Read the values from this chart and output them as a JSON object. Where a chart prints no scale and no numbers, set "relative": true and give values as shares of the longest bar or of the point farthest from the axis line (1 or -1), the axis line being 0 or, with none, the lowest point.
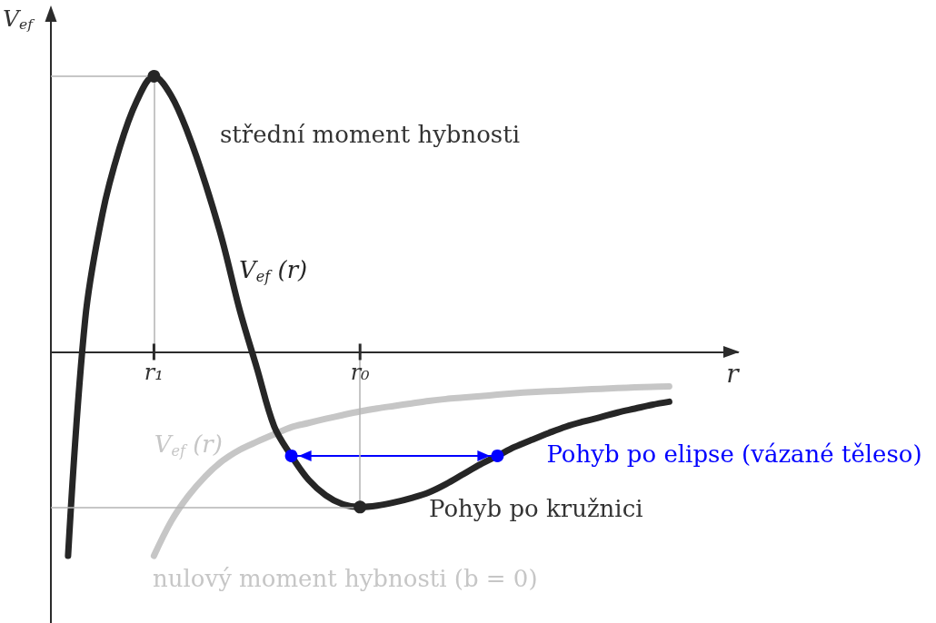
{
  "chart_data": {
    "type": "line",
    "relative": true,
    "xlabel": "r",
    "ylabel": "V$_{ef}$",
    "marker": "none",
    "categories": [
      null,
      null,
      null,
      null,
      null,
      null,
      "r₁",
      null,
      null,
      null,
      null,
      null,
      null,
      null,
      null,
      null,
      null,
      null,
      "r₀",
      null,
      null,
      null,
      null,
      null,
      null,
      null,
      null,
      null,
      null,
      null,
      null,
      null,
      null,
      null,
      null,
      null,
      null,
      null,
      null,
      null,
      null
    ],
    "series": [
      {
        "name": "V$_{ef}$ (r)",
        "color": "#262626",
        "values": [
          null,
          -0.74,
          0.12,
          0.5,
          0.74,
          0.91,
          1,
          0.93,
          0.79,
          0.61,
          0.4,
          0.15,
          -0.06,
          -0.27,
          -0.377,
          -0.464,
          -0.52,
          -0.553,
          -0.563,
          -0.558,
          -0.546,
          -0.53,
          -0.51,
          -0.48,
          -0.444,
          -0.408,
          -0.377,
          -0.345,
          -0.319,
          -0.294,
          -0.271,
          -0.253,
          -0.237,
          -0.22,
          -0.206,
          -0.192,
          -0.181,
          null,
          null,
          null,
          null
        ]
      },
      {
        "name": "V$_{ef}$ (r)",
        "color": "#c6c6c6",
        "values": [
          null,
          null,
          null,
          null,
          null,
          null,
          -0.74,
          -0.615,
          -0.523,
          -0.451,
          -0.395,
          -0.355,
          -0.326,
          -0.299,
          -0.273,
          -0.258,
          -0.243,
          -0.229,
          -0.216,
          -0.205,
          -0.196,
          -0.187,
          -0.178,
          -0.171,
          -0.166,
          -0.161,
          -0.155,
          -0.15,
          -0.146,
          -0.143,
          -0.14,
          -0.137,
          -0.134,
          -0.131,
          -0.129,
          -0.127,
          -0.125,
          null,
          null,
          null,
          null
        ]
      },
      {
        "name": "Pohyb po elipse (vázané těleso)",
        "color": "#0000ff",
        "marker": "circle",
        "values": [
          null,
          null,
          null,
          null,
          null,
          null,
          null,
          null,
          null,
          null,
          null,
          null,
          null,
          null,
          -0.377,
          null,
          null,
          null,
          null,
          null,
          null,
          null,
          null,
          null,
          null,
          null,
          -0.377,
          null,
          null,
          null,
          null,
          null,
          null,
          null,
          null,
          null,
          null,
          null,
          null,
          null,
          null
        ]
      }
    ],
    "ref_lines": [
      {
        "axis": "y",
        "value": 1,
        "color": "#b3b3b3"
      },
      {
        "axis": "y",
        "value": -0.563,
        "color": "#b3b3b3"
      },
      {
        "axis": "x",
        "value": "r₁",
        "color": "#b3b3b3"
      },
      {
        "axis": "x",
        "value": "r₀",
        "color": "#b3b3b3"
      }
    ],
    "annotations": [
      "střední moment hybnosti",
      "Pohyb po kružnici",
      "nulový moment hybnosti (b = 0)"
    ]
  }
}
